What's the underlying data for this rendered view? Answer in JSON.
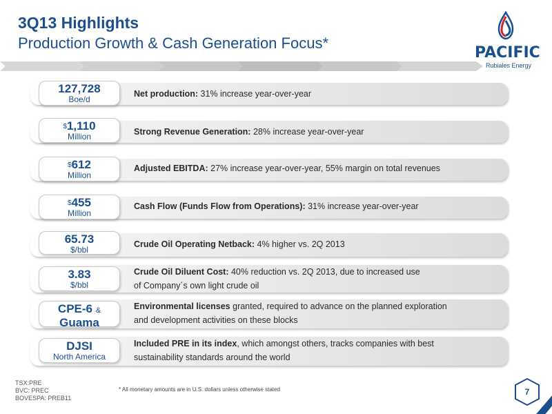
{
  "header": {
    "title": "3Q13 Highlights",
    "subtitle": "Production Growth & Cash Generation Focus*"
  },
  "logo": {
    "name": "PACIFIC",
    "tagline": "Rubiales Energy",
    "colors": {
      "blue": "#1b4f8c",
      "red": "#d6252a"
    }
  },
  "rows": [
    {
      "value": "127,728",
      "unit": "Boe/d",
      "bold": "Net production:",
      "text": " 31%  increase year-over-year"
    },
    {
      "currency": "$",
      "value": "1,110",
      "unit": "Million",
      "bold": "Strong Revenue Generation:",
      "text": " 28% increase year-over-year"
    },
    {
      "currency": "$",
      "value": "612",
      "unit": "Million",
      "bold": "Adjusted EBITDA:",
      "text": " 27% increase year-over-year, 55% margin on total revenues"
    },
    {
      "currency": "$",
      "value": "455",
      "unit": "Million",
      "bold": "Cash Flow (Funds Flow from Operations):",
      "text": " 31% increase year-over-year"
    },
    {
      "value": "65.73",
      "unit": "$/bbl",
      "bold": "Crude Oil Operating Netback:",
      "text": " 4% higher vs. 2Q 2013"
    },
    {
      "value": "3.83",
      "unit": "$/bbl",
      "bold": "Crude Oil Diluent Cost:",
      "text": " 40% reduction vs. 2Q 2013, due to increased use",
      "text2": "of Company´s own light crude oil"
    },
    {
      "value": "CPE-6",
      "amp": "&",
      "unit": "Guama",
      "bold": "Environmental licenses",
      "text": " granted, required to advance on the planned exploration",
      "text2": "and development activities on these blocks"
    },
    {
      "value": "DJSI",
      "unit": "North America",
      "bold": "Included PRE in its index",
      "text": ", which amongst others, tracks companies with best",
      "text2": "sustainability  standards around the world"
    }
  ],
  "footer": {
    "tickers": [
      "TSX:PRE",
      "BVC: PREC",
      "BOVESPA: PREB11"
    ],
    "footnote": "*   All monetary amounts are in U.S. dollars unless otherwise stated",
    "page": "7"
  }
}
